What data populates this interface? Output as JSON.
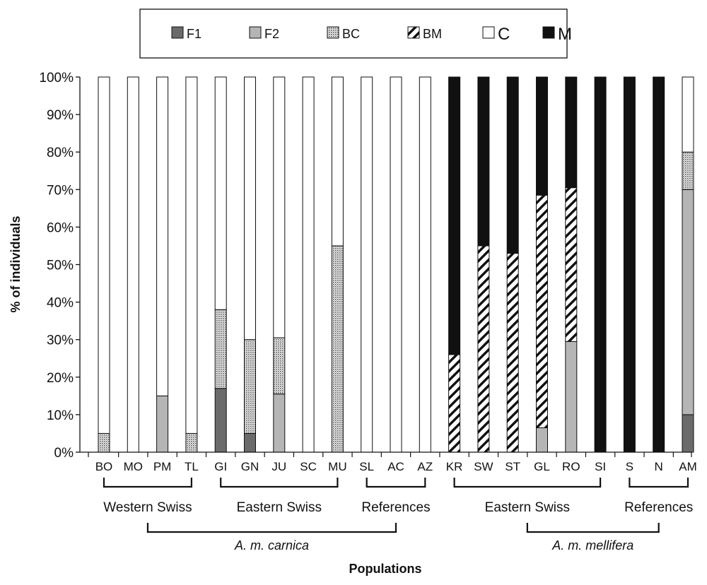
{
  "chart_data": {
    "type": "bar",
    "stacked": true,
    "title": "",
    "xlabel": "Populations",
    "ylabel": "% of individuals",
    "ylim": [
      0,
      100
    ],
    "yticks": [
      "0%",
      "10%",
      "20%",
      "30%",
      "40%",
      "50%",
      "60%",
      "70%",
      "80%",
      "90%",
      "100%"
    ],
    "grid": false,
    "legend_position": "top",
    "categories": [
      "BO",
      "MO",
      "PM",
      "TL",
      "GI",
      "GN",
      "JU",
      "SC",
      "MU",
      "SL",
      "AC",
      "AZ",
      "KR",
      "SW",
      "ST",
      "GL",
      "RO",
      "SI",
      "S",
      "N",
      "AM"
    ],
    "series": [
      {
        "name": "F1",
        "color": "#6b6b6b",
        "pattern": "solid",
        "values": [
          0,
          0,
          0,
          0,
          17,
          5,
          0,
          0,
          0,
          0,
          0,
          0,
          0,
          0,
          0,
          0,
          0,
          0,
          0,
          0,
          10
        ]
      },
      {
        "name": "F2",
        "color": "#b5b5b5",
        "pattern": "solid",
        "values": [
          0,
          0,
          15,
          0,
          0,
          0,
          15.5,
          0,
          0,
          0,
          0,
          0,
          0,
          0,
          0,
          6.5,
          29.5,
          0,
          0,
          0,
          60
        ]
      },
      {
        "name": "BC",
        "color": "#c8c8c8",
        "pattern": "dotted",
        "values": [
          5,
          0,
          0,
          5,
          21,
          25,
          15,
          0,
          55,
          0,
          0,
          0,
          0,
          0,
          0,
          0,
          0,
          0,
          0,
          0,
          10
        ]
      },
      {
        "name": "BM",
        "color": "#ffffff",
        "pattern": "diagonal-hatch",
        "values": [
          0,
          0,
          0,
          0,
          0,
          0,
          0,
          0,
          0,
          0,
          0,
          0,
          26,
          55,
          53,
          62,
          41,
          0,
          0,
          0,
          0
        ]
      },
      {
        "name": "C",
        "color": "#ffffff",
        "pattern": "solid",
        "values": [
          95,
          100,
          85,
          95,
          62,
          70,
          69.5,
          100,
          45,
          100,
          100,
          100,
          0,
          0,
          0,
          0,
          0,
          0,
          0,
          0,
          20
        ]
      },
      {
        "name": "M",
        "color": "#111111",
        "pattern": "solid",
        "values": [
          0,
          0,
          0,
          0,
          0,
          0,
          0,
          0,
          0,
          0,
          0,
          0,
          74,
          45,
          47,
          31.5,
          29.5,
          100,
          100,
          100,
          0
        ]
      }
    ],
    "groups_row1": [
      {
        "label": "Western Swiss",
        "from": 0,
        "to": 3
      },
      {
        "label": "Eastern Swiss",
        "from": 4,
        "to": 8
      },
      {
        "label": "References",
        "from": 9,
        "to": 11
      },
      {
        "label": "Eastern Swiss",
        "from": 12,
        "to": 17
      },
      {
        "label": "References",
        "from": 18,
        "to": 20
      }
    ],
    "groups_row2": [
      {
        "label": "A. m. carnica",
        "from": 0,
        "to": 11
      },
      {
        "label": "A. m. mellifera",
        "from": 12,
        "to": 20
      }
    ]
  }
}
